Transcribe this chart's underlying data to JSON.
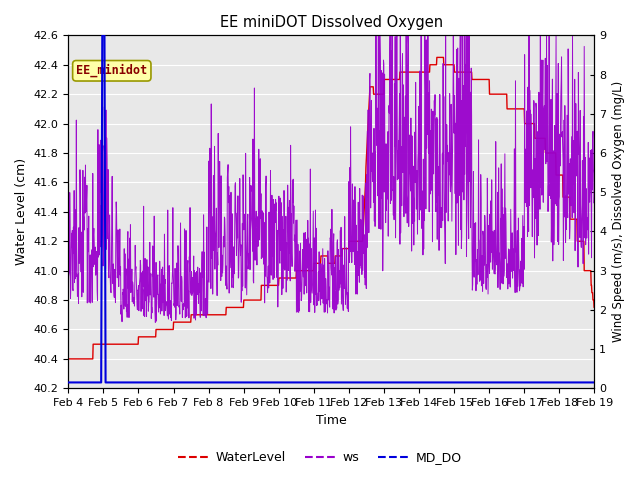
{
  "title": "EE miniDOT Dissolved Oxygen",
  "xlabel": "Time",
  "ylabel_left": "Water Level (cm)",
  "ylabel_right": "Wind Speed (m/s), Dissolved Oxygen (mg/L)",
  "annotation_text": "EE_minidot",
  "ylim_left": [
    40.2,
    42.6
  ],
  "ylim_right": [
    0.0,
    9.0
  ],
  "yticks_left": [
    40.2,
    40.4,
    40.6,
    40.8,
    41.0,
    41.2,
    41.4,
    41.6,
    41.8,
    42.0,
    42.2,
    42.4,
    42.6
  ],
  "yticks_right": [
    0.0,
    1.0,
    2.0,
    3.0,
    4.0,
    5.0,
    6.0,
    7.0,
    8.0,
    9.0
  ],
  "xtick_labels": [
    "Feb 4",
    "Feb 5",
    "Feb 6",
    "Feb 7",
    "Feb 8",
    "Feb 9",
    "Feb 10",
    "Feb 11",
    "Feb 12",
    "Feb 13",
    "Feb 14",
    "Feb 15",
    "Feb 16",
    "Feb 17",
    "Feb 18",
    "Feb 19"
  ],
  "color_waterLevel": "#dd0000",
  "color_ws": "#9900cc",
  "color_mddo": "#0000dd",
  "legend_labels": [
    "WaterLevel",
    "ws",
    "MD_DO"
  ],
  "bg_color": "#e8e8e8",
  "fig_color": "#ffffff",
  "grid_color": "#ffffff",
  "annotation_facecolor": "#ffffaa",
  "annotation_edgecolor": "#999900"
}
